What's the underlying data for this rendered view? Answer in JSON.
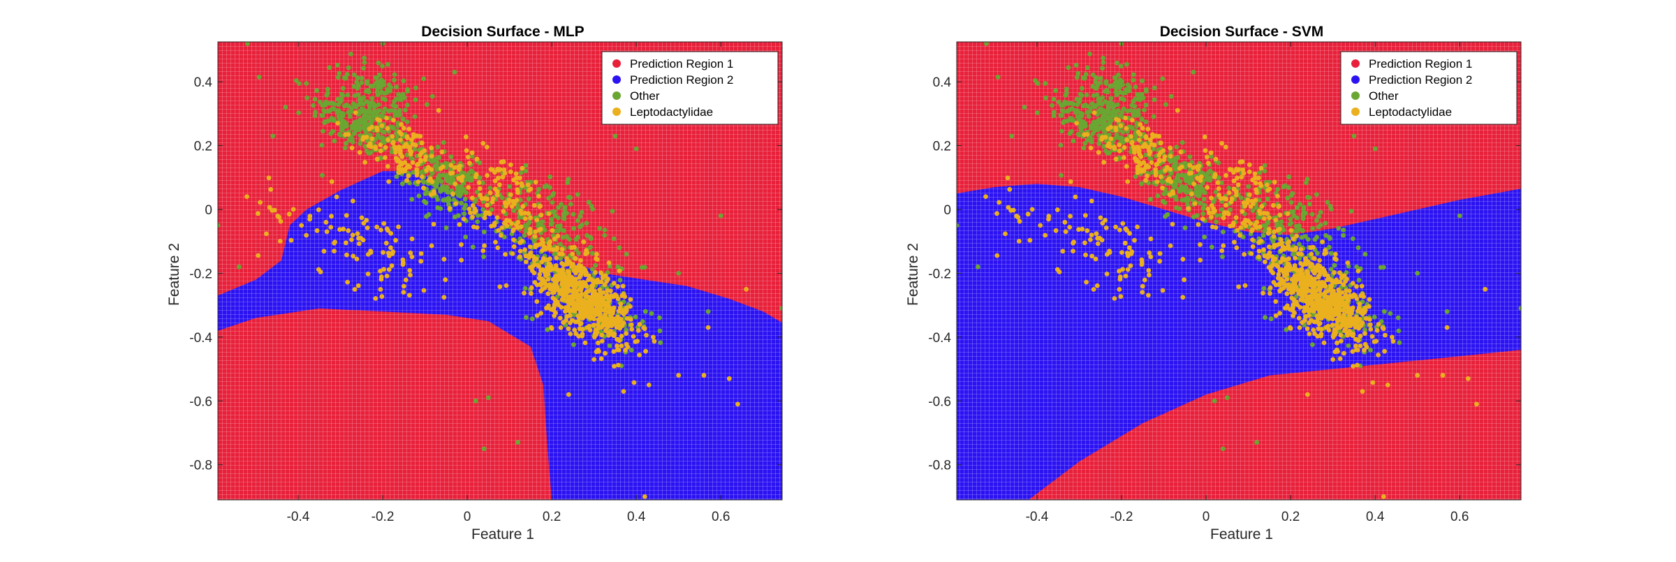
{
  "colors": {
    "region1": "#e8203a",
    "region2": "#2b12f2",
    "other": "#6aa632",
    "leptodactylidae": "#ebb01e"
  },
  "chart_data": [
    {
      "type": "scatter",
      "title": "Decision Surface - MLP",
      "xlabel": "Feature 1",
      "ylabel": "Feature 2",
      "xlim": [
        -0.59,
        0.745
      ],
      "ylim": [
        -0.91,
        0.525
      ],
      "xticks": [
        -0.4,
        -0.2,
        0,
        0.2,
        0.4,
        0.6
      ],
      "xtick_labels": [
        "-0.4",
        "-0.2",
        "0",
        "0.2",
        "0.4",
        "0.6"
      ],
      "yticks": [
        0.4,
        0.2,
        0,
        -0.2,
        -0.4,
        -0.6,
        -0.8
      ],
      "ytick_labels": [
        "0.4",
        "0.2",
        "0",
        "-0.2",
        "-0.4",
        "-0.6",
        "-0.8"
      ],
      "legend_position": "top-right",
      "legend": [
        "Prediction Region 1",
        "Prediction Region 2",
        "Other",
        "Leptodactylidae"
      ],
      "background": "Prediction Region 1",
      "region2_boundary": [
        [
          -0.59,
          -0.27
        ],
        [
          -0.5,
          -0.22
        ],
        [
          -0.44,
          -0.16
        ],
        [
          -0.42,
          -0.05
        ],
        [
          -0.38,
          0.0
        ],
        [
          -0.3,
          0.06
        ],
        [
          -0.2,
          0.12
        ],
        [
          -0.12,
          0.12
        ],
        [
          -0.02,
          0.05
        ],
        [
          0.1,
          -0.05
        ],
        [
          0.2,
          -0.14
        ],
        [
          0.32,
          -0.2
        ],
        [
          0.42,
          -0.22
        ],
        [
          0.52,
          -0.24
        ],
        [
          0.62,
          -0.28
        ],
        [
          0.7,
          -0.32
        ],
        [
          0.745,
          -0.355
        ],
        [
          0.745,
          -0.91
        ],
        [
          0.2,
          -0.91
        ],
        [
          0.19,
          -0.75
        ],
        [
          0.18,
          -0.55
        ],
        [
          0.15,
          -0.43
        ],
        [
          0.05,
          -0.35
        ],
        [
          -0.05,
          -0.33
        ],
        [
          -0.2,
          -0.32
        ],
        [
          -0.35,
          -0.31
        ],
        [
          -0.5,
          -0.34
        ],
        [
          -0.59,
          -0.38
        ]
      ],
      "clusters": [
        {
          "class": "Other",
          "center": [
            -0.25,
            0.27
          ],
          "spread": [
            0.06,
            0.05
          ],
          "n": 260
        },
        {
          "class": "Other",
          "center": [
            -0.2,
            0.38
          ],
          "spread": [
            0.05,
            0.04
          ],
          "n": 90
        },
        {
          "class": "Other",
          "center": [
            -0.05,
            0.08
          ],
          "spread": [
            0.05,
            0.05
          ],
          "n": 200
        },
        {
          "class": "Other",
          "center": [
            0.18,
            -0.05
          ],
          "spread": [
            0.08,
            0.08
          ],
          "n": 200
        },
        {
          "class": "Other",
          "center": [
            0.3,
            -0.3
          ],
          "spread": [
            0.07,
            0.06
          ],
          "n": 120
        },
        {
          "class": "Leptodactylidae",
          "center": [
            -0.15,
            0.18
          ],
          "spread": [
            0.05,
            0.05
          ],
          "n": 120
        },
        {
          "class": "Leptodactylidae",
          "center": [
            0.08,
            0.02
          ],
          "spread": [
            0.07,
            0.08
          ],
          "n": 150
        },
        {
          "class": "Leptodactylidae",
          "center": [
            -0.25,
            -0.1
          ],
          "spread": [
            0.12,
            0.07
          ],
          "n": 110
        },
        {
          "class": "Leptodactylidae",
          "center": [
            0.27,
            -0.27
          ],
          "spread": [
            0.06,
            0.06
          ],
          "n": 650
        }
      ],
      "outliers_other": [
        [
          -0.52,
          0.52
        ],
        [
          -0.59,
          -0.05
        ],
        [
          0.745,
          -0.31
        ],
        [
          -0.54,
          -0.18
        ],
        [
          0.12,
          -0.73
        ],
        [
          0.04,
          -0.75
        ],
        [
          0.02,
          -0.6
        ],
        [
          0.05,
          -0.59
        ],
        [
          -0.2,
          0.52
        ],
        [
          -0.03,
          0.43
        ],
        [
          0.35,
          0.23
        ],
        [
          0.4,
          0.19
        ],
        [
          0.6,
          -0.02
        ],
        [
          0.36,
          -0.12
        ],
        [
          -0.46,
          0.23
        ],
        [
          -0.43,
          0.32
        ],
        [
          0.57,
          -0.32
        ],
        [
          0.5,
          -0.2
        ]
      ],
      "outliers_lepto": [
        [
          0.42,
          -0.9
        ],
        [
          0.64,
          -0.61
        ],
        [
          0.5,
          -0.52
        ],
        [
          0.56,
          -0.52
        ],
        [
          0.62,
          -0.53
        ],
        [
          0.37,
          -0.57
        ],
        [
          0.24,
          -0.58
        ],
        [
          0.43,
          -0.55
        ],
        [
          0.66,
          -0.25
        ],
        [
          0.57,
          -0.37
        ],
        [
          0.44,
          -0.4
        ],
        [
          0.3,
          -0.47
        ]
      ]
    },
    {
      "type": "scatter",
      "title": "Decision Surface - SVM",
      "xlabel": "Feature 1",
      "ylabel": "Feature 2",
      "xlim": [
        -0.59,
        0.745
      ],
      "ylim": [
        -0.91,
        0.525
      ],
      "xticks": [
        -0.4,
        -0.2,
        0,
        0.2,
        0.4,
        0.6
      ],
      "xtick_labels": [
        "-0.4",
        "-0.2",
        "0",
        "0.2",
        "0.4",
        "0.6"
      ],
      "yticks": [
        0.4,
        0.2,
        0,
        -0.2,
        -0.4,
        -0.6,
        -0.8
      ],
      "ytick_labels": [
        "0.4",
        "0.2",
        "0",
        "-0.2",
        "-0.4",
        "-0.6",
        "-0.8"
      ],
      "legend_position": "top-right",
      "legend": [
        "Prediction Region 1",
        "Prediction Region 2",
        "Other",
        "Leptodactylidae"
      ],
      "background": "Prediction Region 1",
      "region2_boundary": [
        [
          -0.59,
          0.05
        ],
        [
          -0.5,
          0.07
        ],
        [
          -0.4,
          0.08
        ],
        [
          -0.3,
          0.07
        ],
        [
          -0.2,
          0.04
        ],
        [
          -0.1,
          0.0
        ],
        [
          0.0,
          -0.04
        ],
        [
          0.1,
          -0.07
        ],
        [
          0.2,
          -0.08
        ],
        [
          0.3,
          -0.06
        ],
        [
          0.4,
          -0.03
        ],
        [
          0.5,
          0.0
        ],
        [
          0.6,
          0.03
        ],
        [
          0.745,
          0.065
        ],
        [
          0.745,
          -0.44
        ],
        [
          0.6,
          -0.46
        ],
        [
          0.45,
          -0.48
        ],
        [
          0.3,
          -0.5
        ],
        [
          0.15,
          -0.52
        ],
        [
          0.0,
          -0.58
        ],
        [
          -0.15,
          -0.67
        ],
        [
          -0.3,
          -0.79
        ],
        [
          -0.42,
          -0.91
        ],
        [
          -0.59,
          -0.91
        ]
      ],
      "clusters": [
        {
          "class": "Other",
          "center": [
            -0.25,
            0.27
          ],
          "spread": [
            0.06,
            0.05
          ],
          "n": 260
        },
        {
          "class": "Other",
          "center": [
            -0.2,
            0.38
          ],
          "spread": [
            0.05,
            0.04
          ],
          "n": 90
        },
        {
          "class": "Other",
          "center": [
            -0.05,
            0.08
          ],
          "spread": [
            0.05,
            0.05
          ],
          "n": 200
        },
        {
          "class": "Other",
          "center": [
            0.18,
            -0.05
          ],
          "spread": [
            0.08,
            0.08
          ],
          "n": 200
        },
        {
          "class": "Other",
          "center": [
            0.3,
            -0.3
          ],
          "spread": [
            0.07,
            0.06
          ],
          "n": 120
        },
        {
          "class": "Leptodactylidae",
          "center": [
            -0.15,
            0.18
          ],
          "spread": [
            0.05,
            0.05
          ],
          "n": 120
        },
        {
          "class": "Leptodactylidae",
          "center": [
            0.08,
            0.02
          ],
          "spread": [
            0.07,
            0.08
          ],
          "n": 150
        },
        {
          "class": "Leptodactylidae",
          "center": [
            -0.25,
            -0.1
          ],
          "spread": [
            0.12,
            0.07
          ],
          "n": 110
        },
        {
          "class": "Leptodactylidae",
          "center": [
            0.27,
            -0.27
          ],
          "spread": [
            0.06,
            0.06
          ],
          "n": 650
        }
      ],
      "outliers_other": [
        [
          -0.52,
          0.52
        ],
        [
          -0.59,
          -0.05
        ],
        [
          0.745,
          -0.31
        ],
        [
          -0.54,
          -0.18
        ],
        [
          0.12,
          -0.73
        ],
        [
          0.04,
          -0.75
        ],
        [
          0.02,
          -0.6
        ],
        [
          0.05,
          -0.59
        ],
        [
          -0.2,
          0.52
        ],
        [
          -0.03,
          0.43
        ],
        [
          0.35,
          0.23
        ],
        [
          0.4,
          0.19
        ],
        [
          0.6,
          -0.02
        ],
        [
          0.36,
          -0.12
        ],
        [
          -0.46,
          0.23
        ],
        [
          -0.43,
          0.32
        ],
        [
          0.57,
          -0.32
        ],
        [
          0.5,
          -0.2
        ]
      ],
      "outliers_lepto": [
        [
          0.42,
          -0.9
        ],
        [
          0.64,
          -0.61
        ],
        [
          0.5,
          -0.52
        ],
        [
          0.56,
          -0.52
        ],
        [
          0.62,
          -0.53
        ],
        [
          0.37,
          -0.57
        ],
        [
          0.24,
          -0.58
        ],
        [
          0.43,
          -0.55
        ],
        [
          0.66,
          -0.25
        ],
        [
          0.57,
          -0.37
        ],
        [
          0.44,
          -0.4
        ],
        [
          0.3,
          -0.47
        ]
      ]
    }
  ]
}
